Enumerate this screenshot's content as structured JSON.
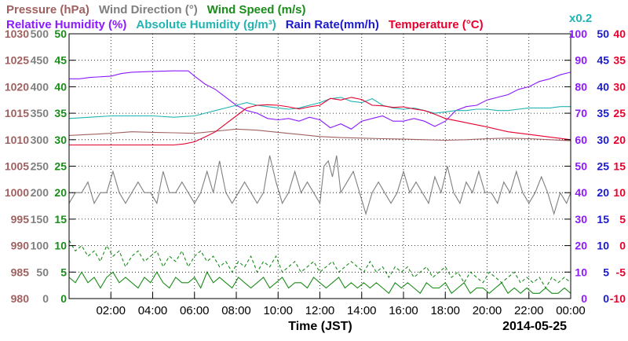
{
  "chart_data": {
    "type": "line",
    "xlabel": "Time (JST)",
    "date_label": "2014-05-25",
    "x_ticks": [
      "02:00",
      "04:00",
      "06:00",
      "08:00",
      "10:00",
      "12:00",
      "14:00",
      "16:00",
      "18:00",
      "20:00",
      "22:00",
      "00:00"
    ],
    "xlim_hours": [
      0,
      24
    ],
    "grid": true,
    "legend_rows": [
      [
        {
          "label": "Pressure (hPa)",
          "color": "#a06060"
        },
        {
          "label": "Wind Direction (°)",
          "color": "#7f7f7f"
        },
        {
          "label": "Wind Speed (m/s)",
          "color": "#1a8c1a"
        }
      ],
      [
        {
          "label": "Relative Humidity (%)",
          "color": "#8c1aff"
        },
        {
          "label": "Absolute Humidity (g/m³)",
          "color": "#22b3b3"
        },
        {
          "label": "Rain Rate(mm/h)",
          "color": "#1a1acc"
        },
        {
          "label": "Temperature (°C)",
          "color": "#e6002e"
        }
      ]
    ],
    "scale_note": {
      "label": "x0.2",
      "color": "#22b3b3"
    },
    "axes": [
      {
        "name": "Pressure (hPa)",
        "side": "left",
        "color": "#a06060",
        "ticks": [
          "980",
          "985",
          "990",
          "995",
          "1000",
          "1005",
          "1010",
          "1015",
          "1020",
          "1025",
          "1030"
        ]
      },
      {
        "name": "Wind Direction (°)",
        "side": "left",
        "color": "#7f7f7f",
        "ticks": [
          "0",
          "50",
          "100",
          "150",
          "200",
          "250",
          "300",
          "350",
          "400",
          "450",
          "500"
        ]
      },
      {
        "name": "Wind Speed (m/s)",
        "side": "left",
        "color": "#1a8c1a",
        "ticks": [
          "0",
          "5",
          "10",
          "15",
          "20",
          "25",
          "30",
          "35",
          "40",
          "45",
          "50"
        ]
      },
      {
        "name": "Relative Humidity (%)",
        "side": "right",
        "color": "#8c1aff",
        "ticks": [
          "0",
          "10",
          "20",
          "30",
          "40",
          "50",
          "60",
          "70",
          "80",
          "90",
          "100"
        ]
      },
      {
        "name": "Rain Rate(mm/h)",
        "side": "right",
        "color": "#1a1acc",
        "ticks": [
          "0",
          "5",
          "10",
          "15",
          "20",
          "25",
          "30",
          "35",
          "40",
          "45",
          "50"
        ]
      },
      {
        "name": "Temperature (°C)",
        "side": "right",
        "color": "#e6002e",
        "ticks": [
          "-10",
          "-5",
          "0",
          "5",
          "10",
          "15",
          "20",
          "25",
          "30",
          "35",
          "40"
        ]
      }
    ],
    "series": [
      {
        "name": "Pressure (hPa)",
        "color": "#a06060",
        "range": [
          980,
          1030
        ],
        "x": [
          0,
          1,
          2,
          3,
          4,
          5,
          6,
          7,
          8,
          9,
          10,
          11,
          12,
          13,
          14,
          15,
          16,
          17,
          18,
          19,
          20,
          21,
          22,
          23,
          24
        ],
        "y": [
          1010.8,
          1011.0,
          1011.2,
          1011.5,
          1011.4,
          1011.3,
          1011.2,
          1011.6,
          1012.0,
          1011.8,
          1011.4,
          1011.0,
          1010.6,
          1010.4,
          1010.3,
          1010.2,
          1010.1,
          1010.0,
          1009.9,
          1010.0,
          1010.2,
          1010.3,
          1010.2,
          1010.0,
          1009.8
        ]
      },
      {
        "name": "Relative Humidity (%)",
        "color": "#8c1aff",
        "range": [
          0,
          100
        ],
        "x": [
          0,
          0.5,
          1,
          2,
          2.5,
          3,
          4,
          5,
          5.7,
          6,
          6.5,
          7,
          7.5,
          8,
          8.5,
          9,
          9.5,
          10,
          10.5,
          11,
          11.5,
          12,
          12.5,
          13,
          13.5,
          14,
          14.5,
          15,
          15.5,
          16,
          16.5,
          17,
          17.5,
          18,
          18.5,
          19,
          19.5,
          20,
          20.5,
          21,
          21.5,
          22,
          22.5,
          23,
          23.5,
          24
        ],
        "y": [
          83,
          83,
          83.5,
          84,
          85,
          85.5,
          85.8,
          86,
          86,
          84,
          81,
          79,
          76,
          73,
          71,
          70,
          68,
          67.5,
          68,
          67,
          68.5,
          67.5,
          64.5,
          66,
          64,
          67,
          68,
          69,
          67,
          67,
          68,
          67,
          65,
          67,
          71,
          72.5,
          73,
          75,
          76,
          77,
          79,
          80,
          82,
          83,
          84.5,
          85.5
        ]
      },
      {
        "name": "Absolute Humidity (g/m³)",
        "color": "#22b3b3",
        "range": [
          0,
          100
        ],
        "x": [
          0,
          1,
          2,
          3,
          4,
          5,
          6,
          6.5,
          7,
          7.5,
          8,
          8.5,
          9,
          9.5,
          10,
          10.5,
          11,
          11.5,
          12,
          12.5,
          13,
          13.5,
          14,
          14.5,
          15,
          15.5,
          16,
          16.5,
          17,
          17.5,
          18,
          18.5,
          19,
          19.5,
          20,
          20.5,
          21,
          21.5,
          22,
          22.5,
          23,
          23.5,
          24
        ],
        "y": [
          68,
          68.5,
          69,
          69,
          69,
          68.5,
          69,
          70,
          71,
          72,
          73,
          74,
          73,
          72.5,
          72,
          71.5,
          72,
          73,
          74,
          75.5,
          76,
          74.5,
          74,
          75.5,
          73,
          72,
          71.5,
          72,
          71,
          70,
          70.5,
          71,
          71,
          71.5,
          71.5,
          71,
          71,
          71.5,
          72,
          72,
          72,
          72.5,
          72.5
        ]
      },
      {
        "name": "Temperature (°C)",
        "color": "#e6002e",
        "range": [
          -10,
          40
        ],
        "x": [
          0,
          1,
          2,
          3,
          4,
          5,
          5.5,
          6,
          6.5,
          7,
          7.5,
          8,
          8.5,
          9,
          9.5,
          10,
          10.5,
          11,
          11.5,
          12,
          12.5,
          13,
          13.5,
          14,
          14.5,
          15,
          15.5,
          16,
          16.5,
          17,
          17.5,
          18,
          19,
          20,
          21,
          22,
          23,
          24
        ],
        "y": [
          19,
          19,
          19,
          19,
          19,
          19,
          19.2,
          19.6,
          20.5,
          21.5,
          23,
          24.5,
          26,
          26.5,
          26.6,
          26.5,
          26.2,
          25.8,
          26.2,
          26.5,
          27.8,
          27.5,
          28,
          27.6,
          26.5,
          26.4,
          26.1,
          26.2,
          25.8,
          25.5,
          24.8,
          24,
          23.2,
          22.4,
          21.5,
          21,
          20.5,
          20
        ]
      },
      {
        "name": "Wind Direction (°)",
        "color": "#7f7f7f",
        "range": [
          0,
          500
        ],
        "x": [
          0,
          0.3,
          0.6,
          0.9,
          1.2,
          1.5,
          1.8,
          2.1,
          2.4,
          2.7,
          3,
          3.3,
          3.6,
          3.9,
          4.2,
          4.5,
          4.8,
          5.1,
          5.4,
          5.7,
          6,
          6.3,
          6.6,
          6.9,
          7.2,
          7.5,
          7.8,
          8.1,
          8.4,
          8.7,
          9,
          9.3,
          9.6,
          9.9,
          10.2,
          10.5,
          10.8,
          11.1,
          11.4,
          11.7,
          12,
          12.2,
          12.4,
          12.6,
          12.8,
          13,
          13.3,
          13.6,
          13.9,
          14.2,
          14.5,
          14.8,
          15.1,
          15.4,
          15.7,
          16,
          16.3,
          16.6,
          16.9,
          17.2,
          17.5,
          17.8,
          18.1,
          18.4,
          18.7,
          19,
          19.3,
          19.6,
          19.9,
          20.2,
          20.5,
          20.8,
          21.1,
          21.4,
          21.7,
          22,
          22.3,
          22.6,
          22.9,
          23.2,
          23.5,
          23.8,
          24
        ],
        "y": [
          180,
          200,
          200,
          220,
          180,
          200,
          200,
          240,
          200,
          180,
          200,
          220,
          200,
          200,
          180,
          240,
          200,
          200,
          220,
          200,
          180,
          200,
          240,
          200,
          260,
          200,
          180,
          200,
          220,
          200,
          180,
          200,
          270,
          220,
          180,
          200,
          240,
          200,
          220,
          200,
          180,
          250,
          260,
          230,
          270,
          200,
          220,
          240,
          200,
          160,
          200,
          220,
          200,
          180,
          200,
          240,
          200,
          220,
          200,
          180,
          230,
          200,
          250,
          200,
          180,
          220,
          200,
          240,
          200,
          200,
          180,
          220,
          200,
          240,
          200,
          180,
          200,
          230,
          200,
          160,
          200,
          180,
          200
        ]
      },
      {
        "name": "Wind Speed (m/s)",
        "color": "#1a8c1a",
        "range": [
          0,
          50
        ],
        "x": [
          0,
          0.3,
          0.6,
          0.9,
          1.2,
          1.5,
          1.8,
          2.1,
          2.4,
          2.7,
          3,
          3.3,
          3.6,
          3.9,
          4.2,
          4.5,
          4.8,
          5.1,
          5.4,
          5.7,
          6,
          6.3,
          6.6,
          6.9,
          7.2,
          7.5,
          7.8,
          8.1,
          8.4,
          8.7,
          9,
          9.3,
          9.6,
          9.9,
          10.2,
          10.5,
          10.8,
          11.1,
          11.4,
          11.7,
          12,
          12.3,
          12.6,
          12.9,
          13.2,
          13.5,
          13.8,
          14.1,
          14.4,
          14.7,
          15,
          15.3,
          15.6,
          15.9,
          16.2,
          16.5,
          16.8,
          17.1,
          17.4,
          17.7,
          18,
          18.3,
          18.6,
          18.9,
          19.2,
          19.5,
          19.8,
          20.1,
          20.4,
          20.7,
          21,
          21.3,
          21.6,
          21.9,
          22.2,
          22.5,
          22.8,
          23.1,
          23.4,
          23.7,
          24
        ],
        "y": [
          4,
          3,
          5,
          3,
          4,
          2,
          4,
          5,
          3,
          4,
          3,
          2,
          4,
          3,
          5,
          3,
          2,
          4,
          3,
          3,
          4,
          2,
          5,
          3,
          4,
          3,
          2,
          4,
          3,
          2,
          3,
          4,
          2,
          3,
          4,
          2,
          3,
          3,
          2,
          4,
          3,
          2,
          3,
          4,
          2,
          3,
          2,
          3,
          2,
          3,
          2,
          1,
          3,
          2,
          3,
          2,
          1,
          3,
          2,
          2,
          3,
          1,
          2,
          3,
          1,
          2,
          2,
          1,
          2,
          3,
          1,
          2,
          1,
          2,
          1,
          1,
          2,
          1,
          1,
          2,
          1
        ]
      },
      {
        "name": "Wind Speed gust (m/s)",
        "color": "#1a8c1a",
        "range": [
          0,
          50
        ],
        "dashed": true,
        "x": [
          0,
          0.3,
          0.6,
          0.9,
          1.2,
          1.5,
          1.8,
          2.1,
          2.4,
          2.7,
          3,
          3.3,
          3.6,
          3.9,
          4.2,
          4.5,
          4.8,
          5.1,
          5.4,
          5.7,
          6,
          6.3,
          6.6,
          6.9,
          7.2,
          7.5,
          7.8,
          8.1,
          8.4,
          8.7,
          9,
          9.3,
          9.6,
          9.9,
          10.2,
          10.5,
          10.8,
          11.1,
          11.4,
          11.7,
          12,
          12.3,
          12.6,
          12.9,
          13.2,
          13.5,
          13.8,
          14.1,
          14.4,
          14.7,
          15,
          15.3,
          15.6,
          15.9,
          16.2,
          16.5,
          16.8,
          17.1,
          17.4,
          17.7,
          18,
          18.3,
          18.6,
          18.9,
          19.2,
          19.5,
          19.8,
          20.1,
          20.4,
          20.7,
          21,
          21.3,
          21.6,
          21.9,
          22.2,
          22.5,
          22.8,
          23.1,
          23.4,
          23.7,
          24
        ],
        "y": [
          11,
          9,
          10,
          8,
          9,
          7,
          10,
          8,
          9,
          6,
          8,
          9,
          7,
          8,
          9,
          6,
          8,
          7,
          9,
          6,
          8,
          9,
          7,
          8,
          6,
          7,
          5,
          7,
          6,
          8,
          5,
          7,
          6,
          8,
          5,
          6,
          7,
          5,
          6,
          7,
          5,
          6,
          7,
          5,
          6,
          7,
          6,
          5,
          7,
          5,
          6,
          4,
          6,
          5,
          6,
          4,
          5,
          6,
          4,
          5,
          6,
          4,
          5,
          3,
          5,
          4,
          3,
          5,
          4,
          3,
          4,
          5,
          3,
          4,
          3,
          4,
          2,
          4,
          3,
          4,
          3
        ]
      }
    ]
  }
}
